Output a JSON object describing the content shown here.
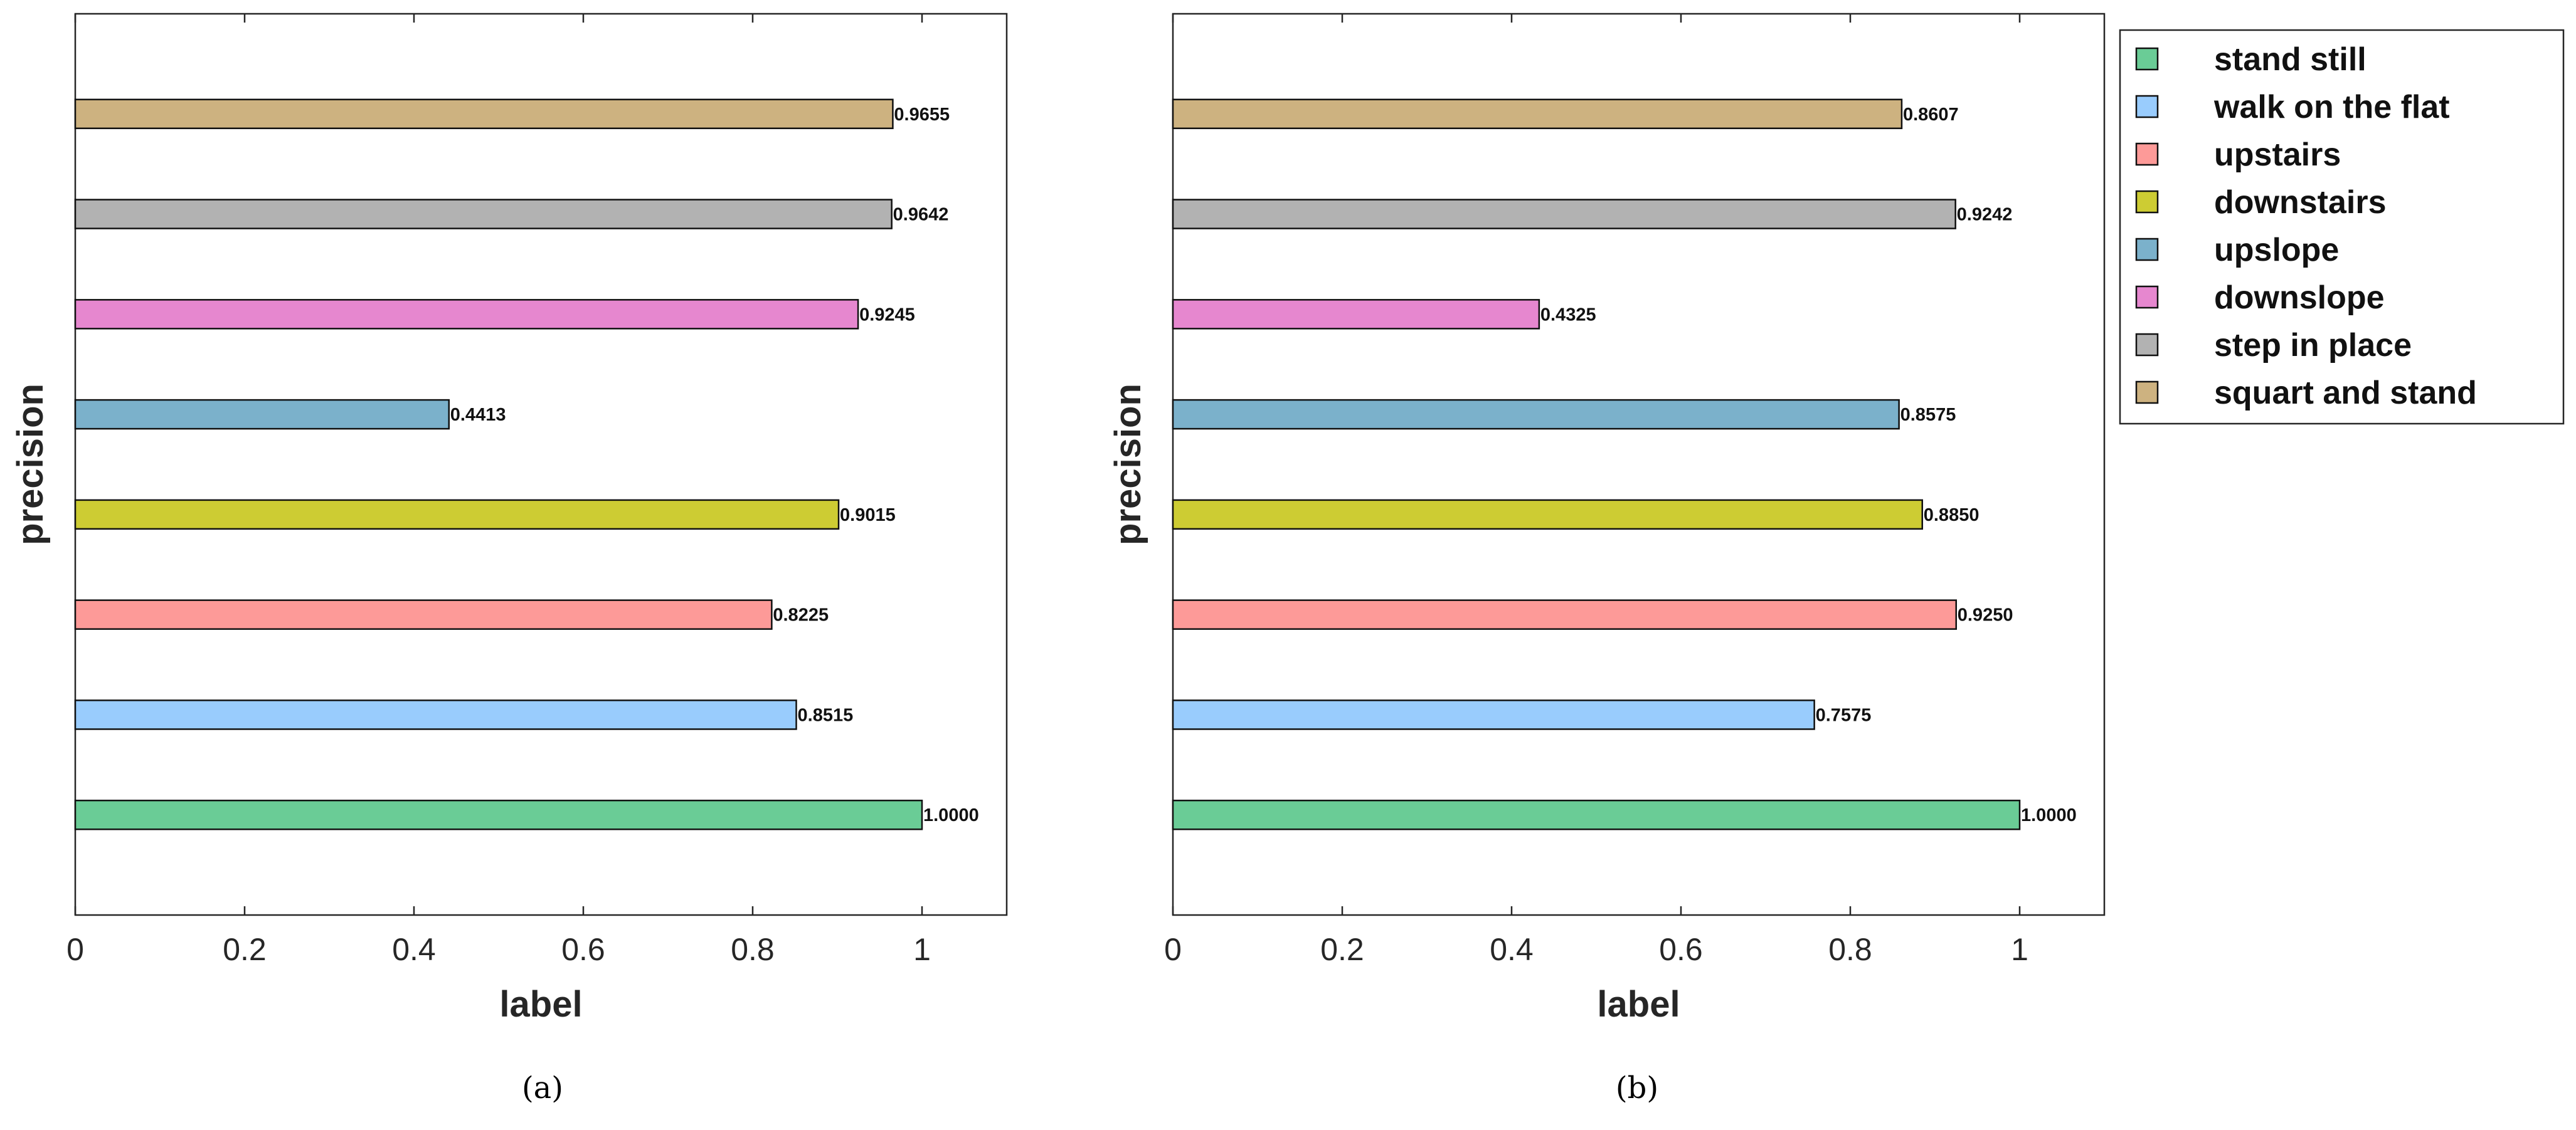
{
  "chart_data": [
    {
      "type": "bar",
      "orientation": "horizontal",
      "caption": "(a)",
      "xlabel": "label",
      "ylabel": "precision",
      "xlim": [
        0,
        1.1
      ],
      "xticks": [
        "0",
        "0.2",
        "0.4",
        "0.6",
        "0.8",
        "1"
      ],
      "categories": [
        "stand still",
        "walk on the flat",
        "upstairs",
        "downstairs",
        "upslope",
        "downslope",
        "step in place",
        "squart and stand"
      ],
      "values": [
        1.0,
        0.8515,
        0.8225,
        0.9015,
        0.4413,
        0.9245,
        0.9642,
        0.9655
      ],
      "value_labels": [
        "1.0000",
        "0.8515",
        "0.8225",
        "0.9015",
        "0.4413",
        "0.9245",
        "0.9642",
        "0.9655"
      ]
    },
    {
      "type": "bar",
      "orientation": "horizontal",
      "caption": "(b)",
      "xlabel": "label",
      "ylabel": "precision",
      "xlim": [
        0,
        1.1
      ],
      "xticks": [
        "0",
        "0.2",
        "0.4",
        "0.6",
        "0.8",
        "1"
      ],
      "categories": [
        "stand still",
        "walk on the flat",
        "upstairs",
        "downstairs",
        "upslope",
        "downslope",
        "step in place",
        "squart and stand"
      ],
      "values": [
        1.0,
        0.7575,
        0.925,
        0.885,
        0.8575,
        0.4325,
        0.9242,
        0.8607
      ],
      "value_labels": [
        "1.0000",
        "0.7575",
        "0.9250",
        "0.8850",
        "0.8575",
        "0.4325",
        "0.9242",
        "0.8607"
      ]
    }
  ],
  "legend": {
    "placement": "outside-right",
    "items": [
      {
        "label": "stand still",
        "color": "#6acc96"
      },
      {
        "label": "walk on the flat",
        "color": "#99ccfd"
      },
      {
        "label": "upstairs",
        "color": "#fd9a98"
      },
      {
        "label": "downstairs",
        "color": "#cdcc33"
      },
      {
        "label": "upslope",
        "color": "#7bb1cb"
      },
      {
        "label": "downslope",
        "color": "#e687cf"
      },
      {
        "label": "step in place",
        "color": "#b2b2b2"
      },
      {
        "label": "squart and stand",
        "color": "#cdb280"
      }
    ]
  }
}
